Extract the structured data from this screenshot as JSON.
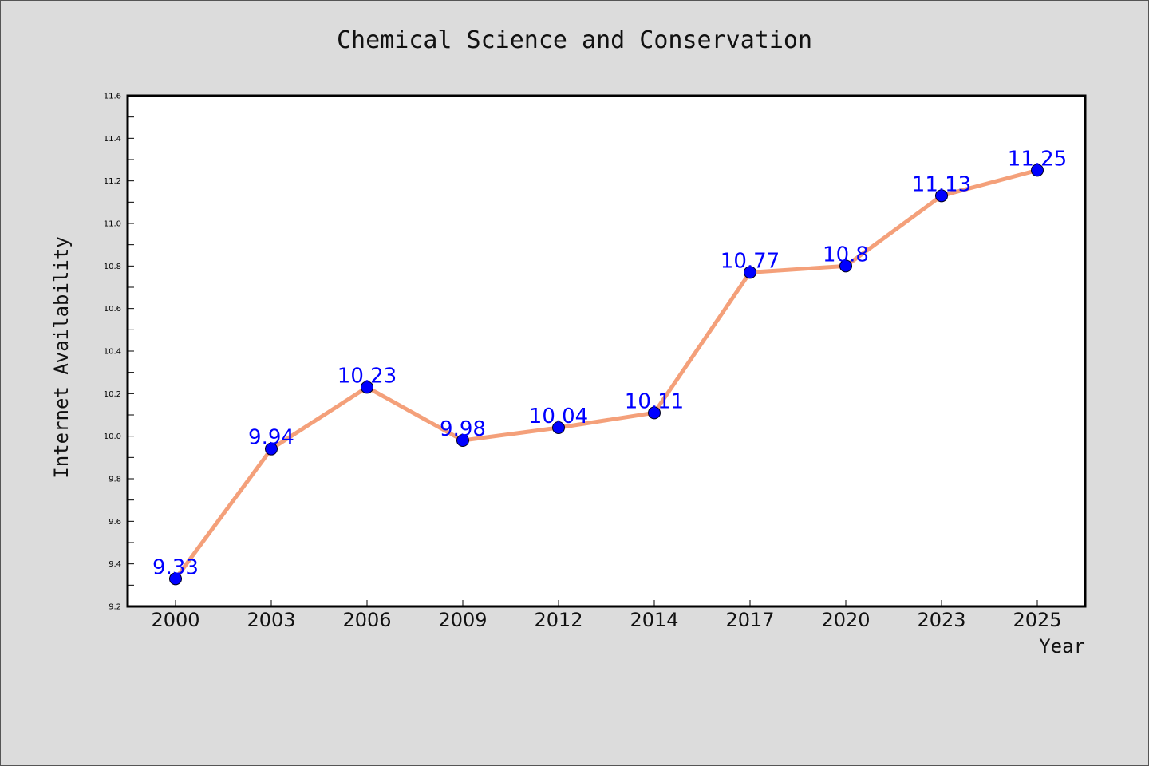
{
  "chart_data": {
    "type": "line",
    "title": "Chemical Science and Conservation",
    "xlabel": "Year",
    "ylabel": "Internet Availability",
    "categories": [
      "2000",
      "2003",
      "2006",
      "2009",
      "2012",
      "2014",
      "2017",
      "2020",
      "2023",
      "2025"
    ],
    "values": [
      9.33,
      9.94,
      10.23,
      9.98,
      10.04,
      10.11,
      10.77,
      10.8,
      11.13,
      11.25
    ],
    "value_labels": [
      "9.33",
      "9.94",
      "10.23",
      "9.98",
      "10.04",
      "10.11",
      "10.77",
      "10.8",
      "11.13",
      "11.25"
    ],
    "ylim": [
      9.2,
      11.6
    ],
    "yticks": [
      "9.2",
      "9.4",
      "9.6",
      "9.8",
      "10.0",
      "10.2",
      "10.4",
      "10.6",
      "10.8",
      "11.0",
      "11.2",
      "11.4",
      "11.6"
    ],
    "grid": false,
    "colors": {
      "line": "#f4a07a",
      "marker": "#0000ff",
      "data_label": "#0000ff",
      "plot_background": "#ffffff",
      "figure_background": "#dcdcdc"
    }
  }
}
